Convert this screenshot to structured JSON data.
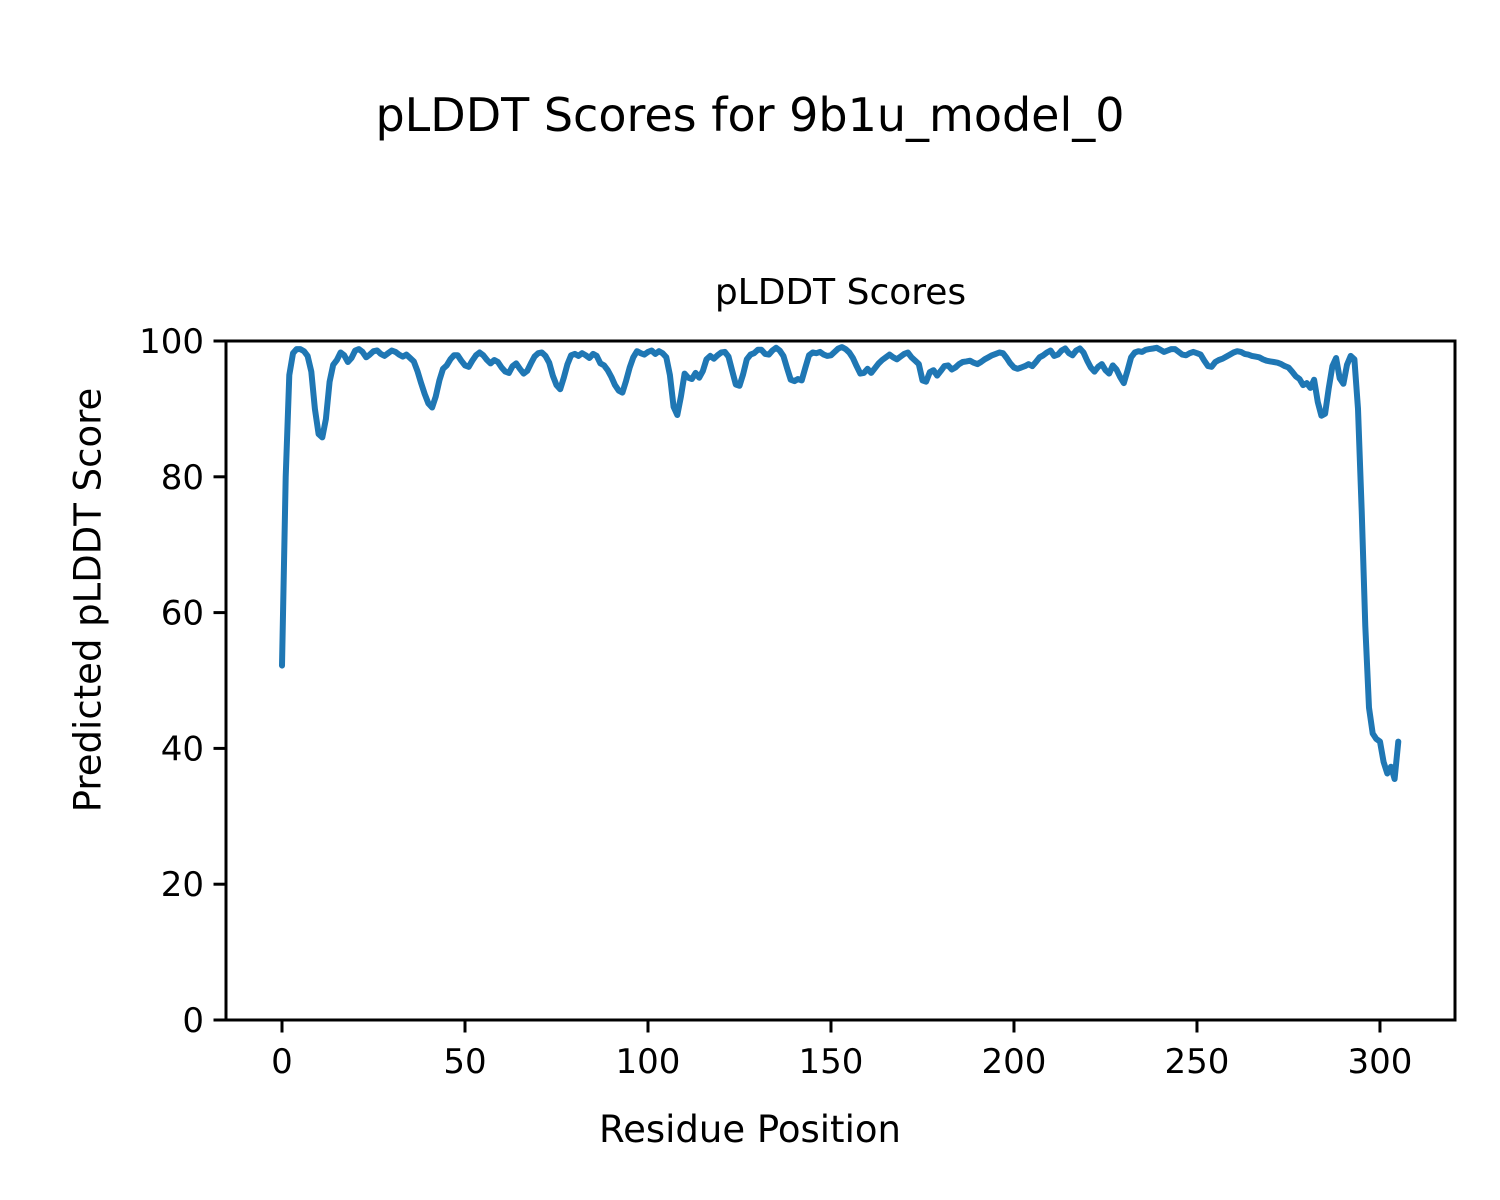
{
  "figure": {
    "title": "pLDDT Scores for 9b1u_model_0",
    "background_color": "#ffffff",
    "text_color": "#000000"
  },
  "chart_data": {
    "type": "line",
    "title": "pLDDT Scores",
    "xlabel": "Residue Position",
    "ylabel": "Predicted pLDDT Score",
    "xlim": [
      -15.3,
      320.5
    ],
    "ylim": [
      0,
      100
    ],
    "xticks": [
      0,
      50,
      100,
      150,
      200,
      250,
      300
    ],
    "yticks": [
      0,
      20,
      40,
      60,
      80,
      100
    ],
    "grid": false,
    "legend": "none",
    "line_color": "#1f77b4",
    "line_width": 6,
    "axis_color": "#000000",
    "series": [
      {
        "name": "pLDDT",
        "x_start": 0,
        "x_step": 1,
        "y": [
          52.2,
          80.0,
          95.0,
          98.2,
          98.8,
          98.8,
          98.5,
          97.8,
          95.5,
          90.0,
          86.3,
          85.8,
          88.5,
          94.0,
          96.5,
          97.2,
          98.3,
          97.9,
          96.9,
          97.5,
          98.6,
          98.8,
          98.4,
          97.6,
          98.0,
          98.5,
          98.6,
          98.1,
          97.8,
          98.2,
          98.6,
          98.4,
          98.0,
          97.7,
          98.0,
          97.5,
          97.0,
          95.6,
          93.8,
          92.2,
          90.8,
          90.2,
          91.8,
          94.2,
          95.9,
          96.4,
          97.3,
          97.9,
          97.9,
          97.1,
          96.4,
          96.2,
          97.1,
          97.9,
          98.3,
          97.9,
          97.2,
          96.7,
          97.2,
          96.9,
          96.1,
          95.5,
          95.3,
          96.3,
          96.7,
          95.9,
          95.2,
          95.6,
          96.7,
          97.7,
          98.2,
          98.3,
          97.8,
          96.8,
          94.9,
          93.5,
          92.9,
          94.6,
          96.6,
          97.9,
          98.1,
          97.8,
          98.2,
          97.9,
          97.5,
          98.1,
          97.8,
          96.7,
          96.4,
          95.7,
          94.7,
          93.5,
          92.7,
          92.4,
          94.1,
          96.1,
          97.6,
          98.5,
          98.2,
          98.0,
          98.4,
          98.6,
          98.1,
          98.5,
          98.2,
          97.6,
          95.0,
          90.3,
          89.1,
          91.8,
          95.2,
          94.6,
          94.4,
          95.3,
          94.6,
          95.6,
          97.3,
          97.8,
          97.4,
          97.9,
          98.3,
          98.4,
          97.7,
          95.6,
          93.6,
          93.4,
          95.1,
          97.3,
          98.0,
          98.2,
          98.7,
          98.7,
          98.1,
          98.0,
          98.6,
          99.0,
          98.6,
          97.8,
          96.0,
          94.3,
          94.1,
          94.4,
          94.2,
          96.1,
          97.9,
          98.3,
          98.2,
          98.4,
          98.0,
          97.8,
          97.9,
          98.4,
          98.9,
          99.1,
          98.8,
          98.3,
          97.5,
          96.3,
          95.2,
          95.3,
          95.9,
          95.3,
          96.0,
          96.7,
          97.2,
          97.6,
          98.0,
          97.6,
          97.3,
          97.7,
          98.1,
          98.3,
          97.6,
          97.1,
          96.6,
          94.2,
          94.0,
          95.4,
          95.7,
          94.9,
          95.6,
          96.3,
          96.4,
          95.8,
          96.1,
          96.6,
          96.9,
          97.0,
          97.1,
          96.8,
          96.6,
          96.9,
          97.3,
          97.6,
          97.9,
          98.1,
          98.3,
          98.2,
          97.5,
          96.7,
          96.1,
          95.9,
          96.1,
          96.3,
          96.6,
          96.3,
          96.9,
          97.6,
          97.9,
          98.3,
          98.6,
          97.8,
          98.0,
          98.6,
          98.9,
          98.2,
          97.9,
          98.6,
          98.9,
          98.3,
          97.1,
          96.1,
          95.5,
          96.2,
          96.6,
          95.7,
          95.2,
          96.4,
          95.8,
          94.7,
          93.8,
          95.6,
          97.6,
          98.3,
          98.5,
          98.4,
          98.7,
          98.8,
          98.9,
          99.0,
          98.7,
          98.4,
          98.6,
          98.8,
          98.8,
          98.4,
          98.0,
          97.9,
          98.2,
          98.4,
          98.2,
          98.0,
          97.1,
          96.3,
          96.2,
          96.9,
          97.2,
          97.4,
          97.7,
          98.0,
          98.3,
          98.5,
          98.4,
          98.1,
          98.0,
          97.8,
          97.7,
          97.6,
          97.3,
          97.1,
          97.0,
          96.9,
          96.8,
          96.6,
          96.3,
          96.1,
          95.5,
          94.8,
          94.4,
          93.5,
          93.8,
          93.1,
          94.3,
          91.0,
          89.0,
          89.3,
          93.0,
          96.3,
          97.5,
          94.5,
          93.7,
          96.5,
          97.8,
          97.3,
          90.0,
          75.0,
          58.0,
          46.0,
          42.2,
          41.4,
          41.0,
          38.0,
          36.3,
          37.3,
          35.5,
          41.0
        ]
      }
    ]
  }
}
